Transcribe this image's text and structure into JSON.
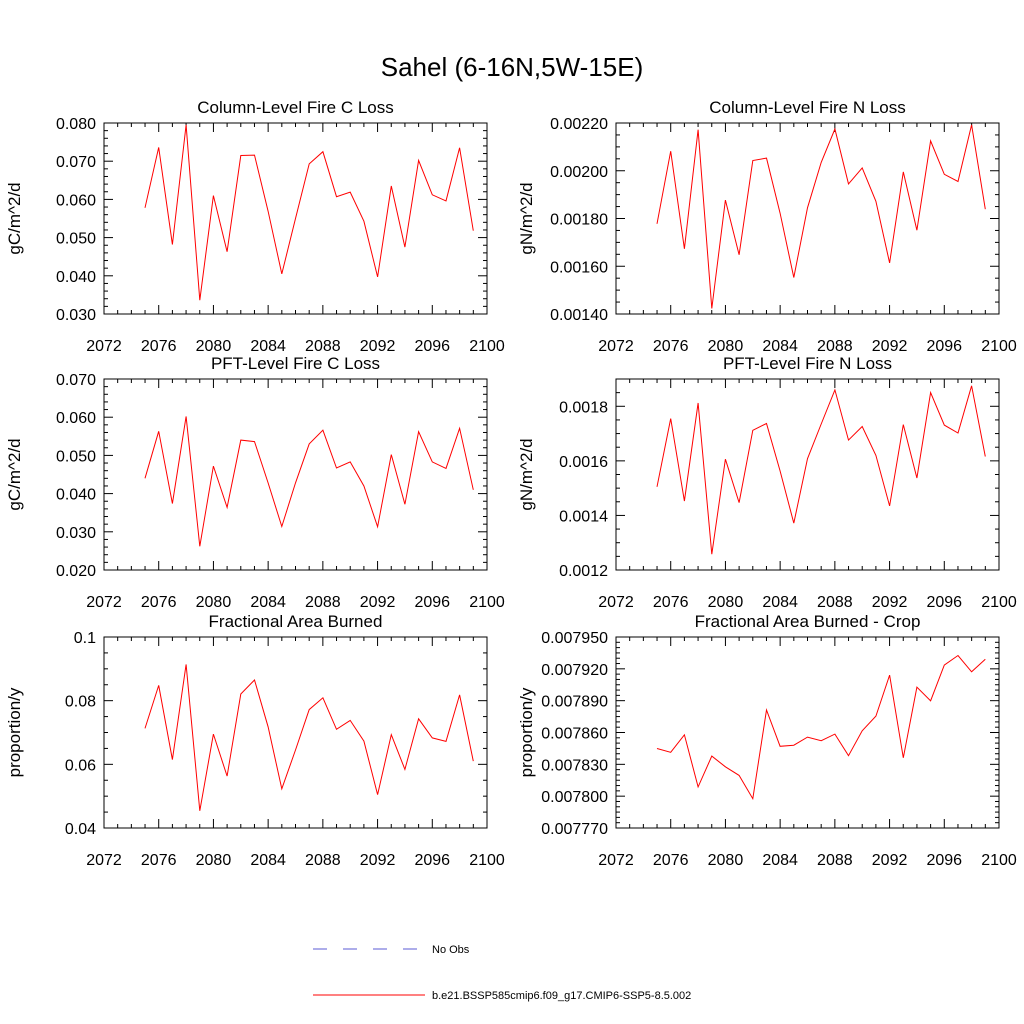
{
  "figure": {
    "title": "Sahel (6-16N,5W-15E)"
  },
  "legend": {
    "entries": [
      {
        "label": "No Obs",
        "color": "#5b5bd6",
        "style": "dashed"
      },
      {
        "label": "b.e21.BSSP585cmip6.f09_g17.CMIP6-SSP5-8.5.002",
        "color": "#ff0000",
        "style": "solid"
      }
    ]
  },
  "chart_data": [
    {
      "type": "line",
      "title": "Column-Level Fire C Loss",
      "ylabel": "gC/m^2/d",
      "xlim": [
        2072,
        2100
      ],
      "ylim": [
        0.03,
        0.08
      ],
      "xticks": [
        2072,
        2076,
        2080,
        2084,
        2088,
        2092,
        2096,
        2100
      ],
      "xtick_labels": [
        "2072",
        "2076",
        "2080",
        "2084",
        "2088",
        "2092",
        "2096",
        "2100"
      ],
      "yticks": [
        0.03,
        0.04,
        0.05,
        0.06,
        0.07,
        0.08
      ],
      "ytick_labels": [
        "0.030",
        "0.040",
        "0.050",
        "0.060",
        "0.070",
        "0.080"
      ],
      "yminor": [
        0.032,
        0.034,
        0.036,
        0.038,
        0.042,
        0.044,
        0.046,
        0.048,
        0.052,
        0.054,
        0.056,
        0.058,
        0.062,
        0.064,
        0.066,
        0.068,
        0.072,
        0.074,
        0.076,
        0.078
      ],
      "x": [
        2075,
        2076,
        2077,
        2078,
        2079,
        2080,
        2081,
        2082,
        2083,
        2084,
        2085,
        2086,
        2087,
        2088,
        2089,
        2090,
        2091,
        2092,
        2093,
        2094,
        2095,
        2096,
        2097,
        2098,
        2099
      ],
      "series": [
        {
          "color": "#ff0000",
          "values": [
            0.0578,
            0.0736,
            0.0482,
            0.0795,
            0.0336,
            0.061,
            0.0463,
            0.0715,
            0.0716,
            0.0569,
            0.0405,
            0.055,
            0.0693,
            0.0725,
            0.0607,
            0.0619,
            0.0543,
            0.0397,
            0.0635,
            0.0475,
            0.0702,
            0.0612,
            0.0596,
            0.0735,
            0.0518
          ]
        }
      ]
    },
    {
      "type": "line",
      "title": "Column-Level Fire N Loss",
      "ylabel": "gN/m^2/d",
      "xlim": [
        2072,
        2100
      ],
      "ylim": [
        0.0014,
        0.0022
      ],
      "xticks": [
        2072,
        2076,
        2080,
        2084,
        2088,
        2092,
        2096,
        2100
      ],
      "xtick_labels": [
        "2072",
        "2076",
        "2080",
        "2084",
        "2088",
        "2092",
        "2096",
        "2100"
      ],
      "yticks": [
        0.0014,
        0.0016,
        0.0018,
        0.002,
        0.0022
      ],
      "ytick_labels": [
        "0.00140",
        "0.00160",
        "0.00180",
        "0.00200",
        "0.00220"
      ],
      "yminor": [
        0.00145,
        0.0015,
        0.00155,
        0.00165,
        0.0017,
        0.00175,
        0.00185,
        0.0019,
        0.00195,
        0.00205,
        0.0021,
        0.00215
      ],
      "x": [
        2075,
        2076,
        2077,
        2078,
        2079,
        2080,
        2081,
        2082,
        2083,
        2084,
        2085,
        2086,
        2087,
        2088,
        2089,
        2090,
        2091,
        2092,
        2093,
        2094,
        2095,
        2096,
        2097,
        2098,
        2099
      ],
      "series": [
        {
          "color": "#ff0000",
          "values": [
            0.001778,
            0.002082,
            0.001673,
            0.002172,
            0.001423,
            0.001877,
            0.001648,
            0.002043,
            0.002053,
            0.001822,
            0.001553,
            0.001845,
            0.002035,
            0.002175,
            0.001945,
            0.002012,
            0.001872,
            0.001614,
            0.001995,
            0.001751,
            0.002125,
            0.001985,
            0.001955,
            0.002192,
            0.001839
          ]
        }
      ]
    },
    {
      "type": "line",
      "title": "PFT-Level Fire C Loss",
      "ylabel": "gC/m^2/d",
      "xlim": [
        2072,
        2100
      ],
      "ylim": [
        0.02,
        0.07
      ],
      "xticks": [
        2072,
        2076,
        2080,
        2084,
        2088,
        2092,
        2096,
        2100
      ],
      "xtick_labels": [
        "2072",
        "2076",
        "2080",
        "2084",
        "2088",
        "2092",
        "2096",
        "2100"
      ],
      "yticks": [
        0.02,
        0.03,
        0.04,
        0.05,
        0.06,
        0.07
      ],
      "ytick_labels": [
        "0.020",
        "0.030",
        "0.040",
        "0.050",
        "0.060",
        "0.070"
      ],
      "yminor": [
        0.022,
        0.024,
        0.026,
        0.028,
        0.032,
        0.034,
        0.036,
        0.038,
        0.042,
        0.044,
        0.046,
        0.048,
        0.052,
        0.054,
        0.056,
        0.058,
        0.062,
        0.064,
        0.066,
        0.068
      ],
      "x": [
        2075,
        2076,
        2077,
        2078,
        2079,
        2080,
        2081,
        2082,
        2083,
        2084,
        2085,
        2086,
        2087,
        2088,
        2089,
        2090,
        2091,
        2092,
        2093,
        2094,
        2095,
        2096,
        2097,
        2098,
        2099
      ],
      "series": [
        {
          "color": "#ff0000",
          "values": [
            0.044,
            0.0563,
            0.0374,
            0.0602,
            0.0262,
            0.0472,
            0.0364,
            0.054,
            0.0536,
            0.0428,
            0.0314,
            0.0428,
            0.053,
            0.0566,
            0.0467,
            0.0483,
            0.042,
            0.0313,
            0.0502,
            0.0372,
            0.0562,
            0.0483,
            0.0466,
            0.0571,
            0.041
          ]
        }
      ]
    },
    {
      "type": "line",
      "title": "PFT-Level Fire N Loss",
      "ylabel": "gN/m^2/d",
      "xlim": [
        2072,
        2100
      ],
      "ylim": [
        0.0012,
        0.0019
      ],
      "xticks": [
        2072,
        2076,
        2080,
        2084,
        2088,
        2092,
        2096,
        2100
      ],
      "xtick_labels": [
        "2072",
        "2076",
        "2080",
        "2084",
        "2088",
        "2092",
        "2096",
        "2100"
      ],
      "yticks": [
        0.0012,
        0.0014,
        0.0016,
        0.0018
      ],
      "ytick_labels": [
        "0.0012",
        "0.0014",
        "0.0016",
        "0.0018"
      ],
      "yminor": [
        0.00125,
        0.0013,
        0.00135,
        0.00145,
        0.0015,
        0.00155,
        0.00165,
        0.0017,
        0.00175,
        0.00185
      ],
      "x": [
        2075,
        2076,
        2077,
        2078,
        2079,
        2080,
        2081,
        2082,
        2083,
        2084,
        2085,
        2086,
        2087,
        2088,
        2089,
        2090,
        2091,
        2092,
        2093,
        2094,
        2095,
        2096,
        2097,
        2098,
        2099
      ],
      "series": [
        {
          "color": "#ff0000",
          "values": [
            0.001505,
            0.001755,
            0.001453,
            0.001812,
            0.001258,
            0.001606,
            0.001447,
            0.001712,
            0.001737,
            0.001563,
            0.001372,
            0.001608,
            0.001735,
            0.00186,
            0.001676,
            0.001726,
            0.00162,
            0.001435,
            0.001733,
            0.001537,
            0.00185,
            0.001731,
            0.001702,
            0.001875,
            0.001616
          ]
        }
      ]
    },
    {
      "type": "line",
      "title": "Fractional Area Burned",
      "ylabel": "proportion/y",
      "xlim": [
        2072,
        2100
      ],
      "ylim": [
        0.04,
        0.1
      ],
      "xticks": [
        2072,
        2076,
        2080,
        2084,
        2088,
        2092,
        2096,
        2100
      ],
      "xtick_labels": [
        "2072",
        "2076",
        "2080",
        "2084",
        "2088",
        "2092",
        "2096",
        "2100"
      ],
      "yticks": [
        0.04,
        0.06,
        0.08,
        0.1
      ],
      "ytick_labels": [
        "0.04",
        "0.06",
        "0.08",
        "0.1"
      ],
      "yminor": [
        0.045,
        0.05,
        0.055,
        0.065,
        0.07,
        0.075,
        0.085,
        0.09,
        0.095
      ],
      "x": [
        2075,
        2076,
        2077,
        2078,
        2079,
        2080,
        2081,
        2082,
        2083,
        2084,
        2085,
        2086,
        2087,
        2088,
        2089,
        2090,
        2091,
        2092,
        2093,
        2094,
        2095,
        2096,
        2097,
        2098,
        2099
      ],
      "series": [
        {
          "color": "#ff0000",
          "values": [
            0.0713,
            0.0848,
            0.0615,
            0.0914,
            0.0454,
            0.0695,
            0.0563,
            0.0821,
            0.0865,
            0.0718,
            0.0523,
            0.0645,
            0.0772,
            0.0809,
            0.071,
            0.0738,
            0.0673,
            0.0505,
            0.0693,
            0.0584,
            0.0743,
            0.0683,
            0.0672,
            0.0818,
            0.061
          ]
        }
      ]
    },
    {
      "type": "line",
      "title": "Fractional Area Burned - Crop",
      "ylabel": "proportion/y",
      "xlim": [
        2072,
        2100
      ],
      "ylim": [
        0.00777,
        0.00795
      ],
      "xticks": [
        2072,
        2076,
        2080,
        2084,
        2088,
        2092,
        2096,
        2100
      ],
      "xtick_labels": [
        "2072",
        "2076",
        "2080",
        "2084",
        "2088",
        "2092",
        "2096",
        "2100"
      ],
      "yticks": [
        0.00777,
        0.0078,
        0.00783,
        0.00786,
        0.00789,
        0.00792,
        0.00795
      ],
      "ytick_labels": [
        "0.007770",
        "0.007800",
        "0.007830",
        "0.007860",
        "0.007890",
        "0.007920",
        "0.007950"
      ],
      "yminor": [
        0.007775,
        0.00778,
        0.007785,
        0.00779,
        0.007795,
        0.007805,
        0.00781,
        0.007815,
        0.00782,
        0.007825,
        0.007835,
        0.00784,
        0.007845,
        0.00785,
        0.007855,
        0.007865,
        0.00787,
        0.007875,
        0.00788,
        0.007885,
        0.007895,
        0.0079,
        0.007905,
        0.00791,
        0.007915,
        0.007925,
        0.00793,
        0.007935,
        0.00794,
        0.007945
      ],
      "x": [
        2075,
        2076,
        2077,
        2078,
        2079,
        2080,
        2081,
        2082,
        2083,
        2084,
        2085,
        2086,
        2087,
        2088,
        2089,
        2090,
        2091,
        2092,
        2093,
        2094,
        2095,
        2096,
        2097,
        2098,
        2099
      ],
      "series": [
        {
          "color": "#ff0000",
          "values": [
            0.0078449,
            0.0078413,
            0.0078578,
            0.0078087,
            0.0078378,
            0.0078277,
            0.0078196,
            0.0077976,
            0.0078812,
            0.007847,
            0.007848,
            0.0078557,
            0.0078523,
            0.0078585,
            0.0078381,
            0.0078616,
            0.0078755,
            0.0079141,
            0.0078362,
            0.0079028,
            0.0078899,
            0.0079235,
            0.0079326,
            0.0079172,
            0.0079291
          ]
        }
      ]
    }
  ]
}
